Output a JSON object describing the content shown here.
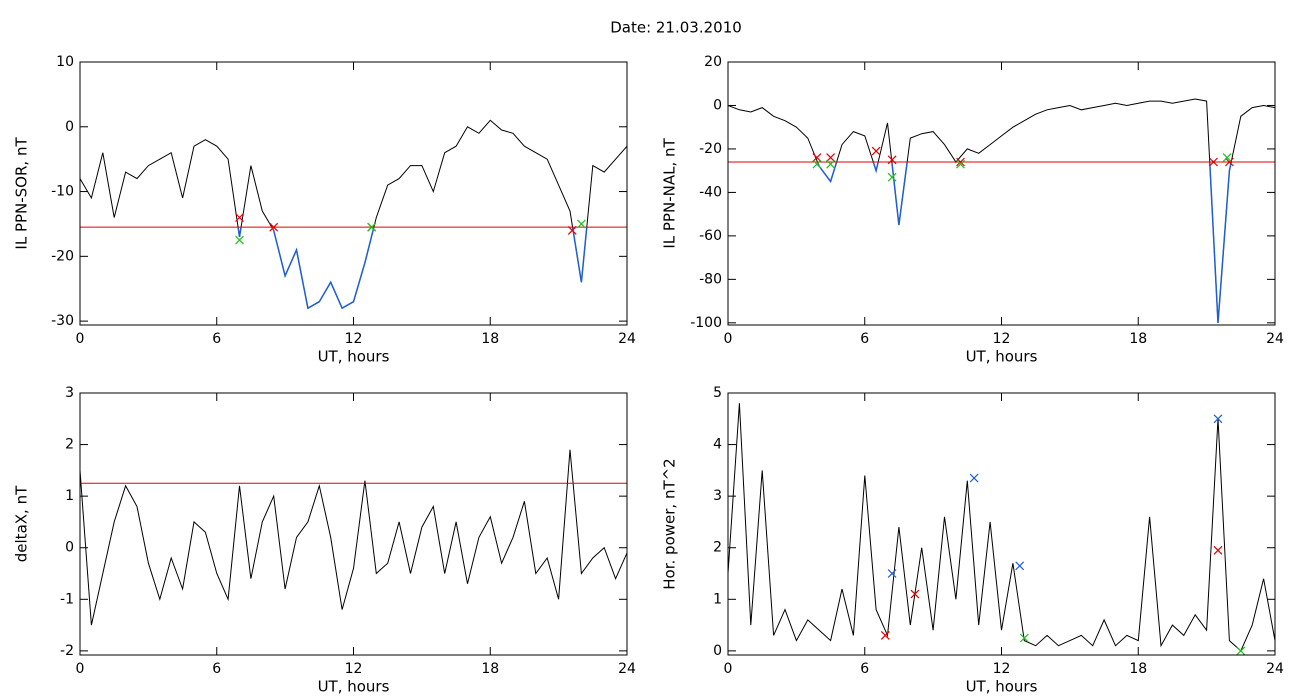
{
  "title": "Date:  21.03.2010",
  "chart_data": [
    {
      "type": "line",
      "ylabel": "IL PPN-SOR, nT",
      "xlabel": "UT, hours",
      "xlim": [
        0,
        24
      ],
      "xticks": [
        0,
        6,
        12,
        18,
        24
      ],
      "ylim": [
        -30.6,
        10
      ],
      "yticks": [
        -30,
        -20,
        -10,
        0,
        10
      ],
      "x": [
        0,
        0.5,
        1,
        1.5,
        2,
        2.5,
        3,
        3.5,
        4,
        4.5,
        5,
        5.5,
        6,
        6.5,
        7,
        7.5,
        8,
        8.5,
        9,
        9.5,
        10,
        10.5,
        11,
        11.5,
        12,
        12.5,
        13,
        13.5,
        14,
        14.5,
        15,
        15.5,
        16,
        16.5,
        17,
        17.5,
        18,
        18.5,
        19,
        19.5,
        20,
        20.5,
        21,
        21.5,
        22,
        22.5,
        23,
        23.5,
        24
      ],
      "series": [
        {
          "color": "#000000",
          "values": [
            -8,
            -11,
            -4,
            -14,
            -7,
            -8,
            -6,
            -5,
            -4,
            -11,
            -3,
            -2,
            -3,
            -5,
            -17,
            -6,
            -13,
            -16,
            -23,
            -19,
            -28,
            -27,
            -24,
            -28,
            -27,
            -21,
            -14,
            -9,
            -8,
            -6,
            -6,
            -10,
            -4,
            -3,
            0,
            -1,
            1,
            -0.5,
            -1,
            -3,
            -4,
            -5,
            -9,
            -13,
            -24,
            -6,
            -7,
            -5,
            -3
          ]
        }
      ],
      "below_color": "#1f5fd0",
      "threshold": {
        "value": -15.5,
        "color": "#e00000"
      },
      "markers": [
        {
          "color": "#e00000",
          "x": [
            7,
            8.5,
            12.8,
            21.6
          ],
          "y": [
            -14,
            -15.5,
            -15.5,
            -16
          ]
        },
        {
          "color": "#20c020",
          "x": [
            7,
            12.8,
            22
          ],
          "y": [
            -17.5,
            -15.5,
            -15
          ]
        }
      ]
    },
    {
      "type": "line",
      "ylabel": "IL PPN-NAL, nT",
      "xlabel": "UT, hours",
      "xlim": [
        0,
        24
      ],
      "xticks": [
        0,
        6,
        12,
        18,
        24
      ],
      "ylim": [
        -101,
        20
      ],
      "yticks": [
        -100,
        -80,
        -60,
        -40,
        -20,
        0,
        20
      ],
      "x": [
        0,
        0.5,
        1,
        1.5,
        2,
        2.5,
        3,
        3.5,
        4,
        4.5,
        5,
        5.5,
        6,
        6.5,
        7,
        7.5,
        8,
        8.5,
        9,
        9.5,
        10,
        10.5,
        11,
        11.5,
        12,
        12.5,
        13,
        13.5,
        14,
        14.5,
        15,
        15.5,
        16,
        16.5,
        17,
        17.5,
        18,
        18.5,
        19,
        19.5,
        20,
        20.5,
        21,
        21.5,
        22,
        22.5,
        23,
        23.5,
        24
      ],
      "series": [
        {
          "color": "#000000",
          "values": [
            0,
            -2,
            -3,
            -1,
            -5,
            -7,
            -10,
            -15,
            -28,
            -35,
            -18,
            -12,
            -14,
            -30,
            -8,
            -55,
            -15,
            -13,
            -12,
            -18,
            -26,
            -20,
            -22,
            -18,
            -14,
            -10,
            -7,
            -4,
            -2,
            -1,
            0,
            -2,
            -1,
            0,
            1,
            0,
            1,
            2,
            2,
            1,
            2,
            3,
            2,
            -100,
            -30,
            -5,
            -1,
            0,
            -1
          ]
        }
      ],
      "below_color": "#1f5fd0",
      "threshold": {
        "value": -26,
        "color": "#e00000"
      },
      "markers": [
        {
          "color": "#e00000",
          "x": [
            3.9,
            4.5,
            6.5,
            7.2,
            10.2,
            21.3,
            22
          ],
          "y": [
            -24,
            -24,
            -21,
            -25,
            -26,
            -26,
            -26
          ]
        },
        {
          "color": "#20c020",
          "x": [
            3.9,
            4.5,
            7.2,
            10.2,
            21.9
          ],
          "y": [
            -27,
            -27,
            -33,
            -27,
            -24
          ]
        }
      ]
    },
    {
      "type": "line",
      "ylabel": "deltaX, nT",
      "xlabel": "UT, hours",
      "xlim": [
        0,
        24
      ],
      "xticks": [
        0,
        6,
        12,
        18,
        24
      ],
      "ylim": [
        -2.08,
        3
      ],
      "yticks": [
        -2,
        -1,
        0,
        1,
        2,
        3
      ],
      "x": [
        0,
        0.5,
        1,
        1.5,
        2,
        2.5,
        3,
        3.5,
        4,
        4.5,
        5,
        5.5,
        6,
        6.5,
        7,
        7.5,
        8,
        8.5,
        9,
        9.5,
        10,
        10.5,
        11,
        11.5,
        12,
        12.5,
        13,
        13.5,
        14,
        14.5,
        15,
        15.5,
        16,
        16.5,
        17,
        17.5,
        18,
        18.5,
        19,
        19.5,
        20,
        20.5,
        21,
        21.5,
        22,
        22.5,
        23,
        23.5,
        24
      ],
      "series": [
        {
          "color": "#000000",
          "values": [
            1.5,
            -1.5,
            -0.5,
            0.5,
            1.2,
            0.8,
            -0.3,
            -1,
            -0.2,
            -0.8,
            0.5,
            0.3,
            -0.5,
            -1,
            1.2,
            -0.6,
            0.5,
            1,
            -0.8,
            0.2,
            0.5,
            1.2,
            0.2,
            -1.2,
            -0.4,
            1.3,
            -0.5,
            -0.3,
            0.5,
            -0.5,
            0.4,
            0.8,
            -0.5,
            0.5,
            -0.7,
            0.2,
            0.6,
            -0.3,
            0.2,
            0.9,
            -0.5,
            -0.2,
            -1,
            1.9,
            -0.5,
            -0.2,
            0,
            -0.6,
            -0.1
          ]
        }
      ],
      "threshold": {
        "value": 1.25,
        "color": "#e00000"
      }
    },
    {
      "type": "line",
      "ylabel": "Hor. power, nT^2",
      "xlabel": "UT, hours",
      "xlim": [
        0,
        24
      ],
      "xticks": [
        0,
        6,
        12,
        18,
        24
      ],
      "ylim": [
        -0.08,
        5
      ],
      "yticks": [
        0,
        1,
        2,
        3,
        4,
        5
      ],
      "x": [
        0,
        0.5,
        1,
        1.5,
        2,
        2.5,
        3,
        3.5,
        4,
        4.5,
        5,
        5.5,
        6,
        6.5,
        7,
        7.5,
        8,
        8.5,
        9,
        9.5,
        10,
        10.5,
        11,
        11.5,
        12,
        12.5,
        13,
        13.5,
        14,
        14.5,
        15,
        15.5,
        16,
        16.5,
        17,
        17.5,
        18,
        18.5,
        19,
        19.5,
        20,
        20.5,
        21,
        21.5,
        22,
        22.5,
        23,
        23.5,
        24
      ],
      "series": [
        {
          "color": "#000000",
          "values": [
            1.5,
            4.8,
            0.5,
            3.5,
            0.3,
            0.8,
            0.2,
            0.6,
            0.4,
            0.2,
            1.2,
            0.3,
            3.4,
            0.8,
            0.3,
            2.4,
            0.5,
            2,
            0.4,
            2.6,
            1,
            3.3,
            0.5,
            2.5,
            0.4,
            1.7,
            0.2,
            0.1,
            0.3,
            0.1,
            0.2,
            0.3,
            0.1,
            0.6,
            0.1,
            0.3,
            0.2,
            2.6,
            0.1,
            0.5,
            0.3,
            0.7,
            0.4,
            4.5,
            0.2,
            0,
            0.5,
            1.4,
            0.2
          ]
        }
      ],
      "markers": [
        {
          "color": "#1f5fd0",
          "x": [
            7.2,
            10.8,
            12.8,
            21.5
          ],
          "y": [
            1.5,
            3.35,
            1.65,
            4.5
          ]
        },
        {
          "color": "#e00000",
          "x": [
            6.9,
            8.2,
            21.5
          ],
          "y": [
            0.3,
            1.1,
            1.95
          ]
        },
        {
          "color": "#20c020",
          "x": [
            13,
            22.5
          ],
          "y": [
            0.25,
            0
          ]
        }
      ]
    }
  ]
}
